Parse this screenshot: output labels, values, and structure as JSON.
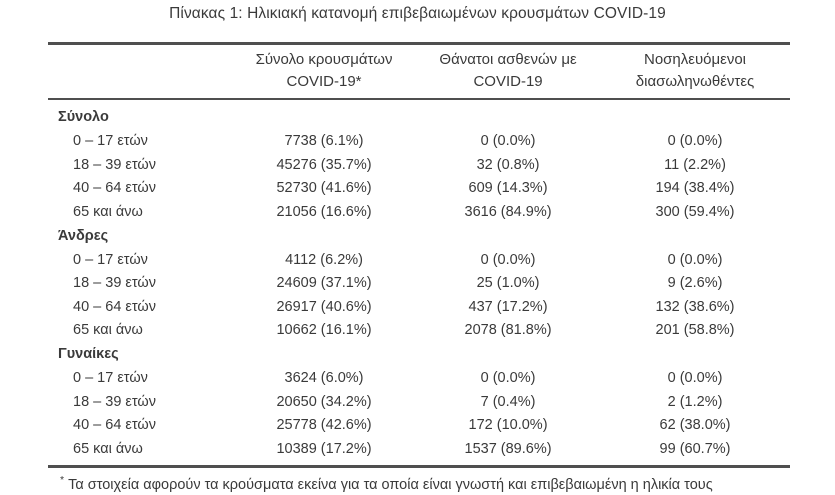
{
  "title": "Πίνακας 1: Ηλικιακή κατανομή επιβεβαιωμένων κρουσμάτων COVID-19",
  "colors": {
    "text": "#3a3a3a",
    "border": "#4f4f4f",
    "background": "#ffffff"
  },
  "table": {
    "header": {
      "cases": {
        "line1": "Σύνολο κρουσμάτων",
        "line2": "COVID-19*"
      },
      "deaths": {
        "line1": "Θάνατοι ασθενών με",
        "line2": "COVID-19"
      },
      "intubated": {
        "line1": "Νοσηλευόμενοι",
        "line2": "διασωληνωθέντες"
      }
    },
    "sections": [
      {
        "label": "Σύνολο",
        "rows": [
          {
            "label": "0 – 17 ετών",
            "cases": "7738 (6.1%)",
            "deaths": "0 (0.0%)",
            "intubated": "0 (0.0%)"
          },
          {
            "label": "18 – 39 ετών",
            "cases": "45276 (35.7%)",
            "deaths": "32 (0.8%)",
            "intubated": "11 (2.2%)"
          },
          {
            "label": "40 – 64 ετών",
            "cases": "52730 (41.6%)",
            "deaths": "609 (14.3%)",
            "intubated": "194 (38.4%)"
          },
          {
            "label": "65 και άνω",
            "cases": "21056 (16.6%)",
            "deaths": "3616 (84.9%)",
            "intubated": "300 (59.4%)"
          }
        ]
      },
      {
        "label": "Άνδρες",
        "rows": [
          {
            "label": "0 – 17 ετών",
            "cases": "4112 (6.2%)",
            "deaths": "0 (0.0%)",
            "intubated": "0 (0.0%)"
          },
          {
            "label": "18 – 39 ετών",
            "cases": "24609 (37.1%)",
            "deaths": "25 (1.0%)",
            "intubated": "9 (2.6%)"
          },
          {
            "label": "40 – 64 ετών",
            "cases": "26917 (40.6%)",
            "deaths": "437 (17.2%)",
            "intubated": "132 (38.6%)"
          },
          {
            "label": "65 και άνω",
            "cases": "10662 (16.1%)",
            "deaths": "2078 (81.8%)",
            "intubated": "201 (58.8%)"
          }
        ]
      },
      {
        "label": "Γυναίκες",
        "rows": [
          {
            "label": "0 – 17 ετών",
            "cases": "3624 (6.0%)",
            "deaths": "0 (0.0%)",
            "intubated": "0 (0.0%)"
          },
          {
            "label": "18 – 39 ετών",
            "cases": "20650 (34.2%)",
            "deaths": "7 (0.4%)",
            "intubated": "2 (1.2%)"
          },
          {
            "label": "40 – 64 ετών",
            "cases": "25778 (42.6%)",
            "deaths": "172 (10.0%)",
            "intubated": "62 (38.0%)"
          },
          {
            "label": "65 και άνω",
            "cases": "10389 (17.2%)",
            "deaths": "1537 (89.6%)",
            "intubated": "99 (60.7%)"
          }
        ]
      }
    ],
    "footnote_marker": "*",
    "footnote_text": "Τα στοιχεία αφορούν τα κρούσματα εκείνα για τα οποία είναι γνωστή και επιβεβαιωμένη η ηλικία τους"
  }
}
